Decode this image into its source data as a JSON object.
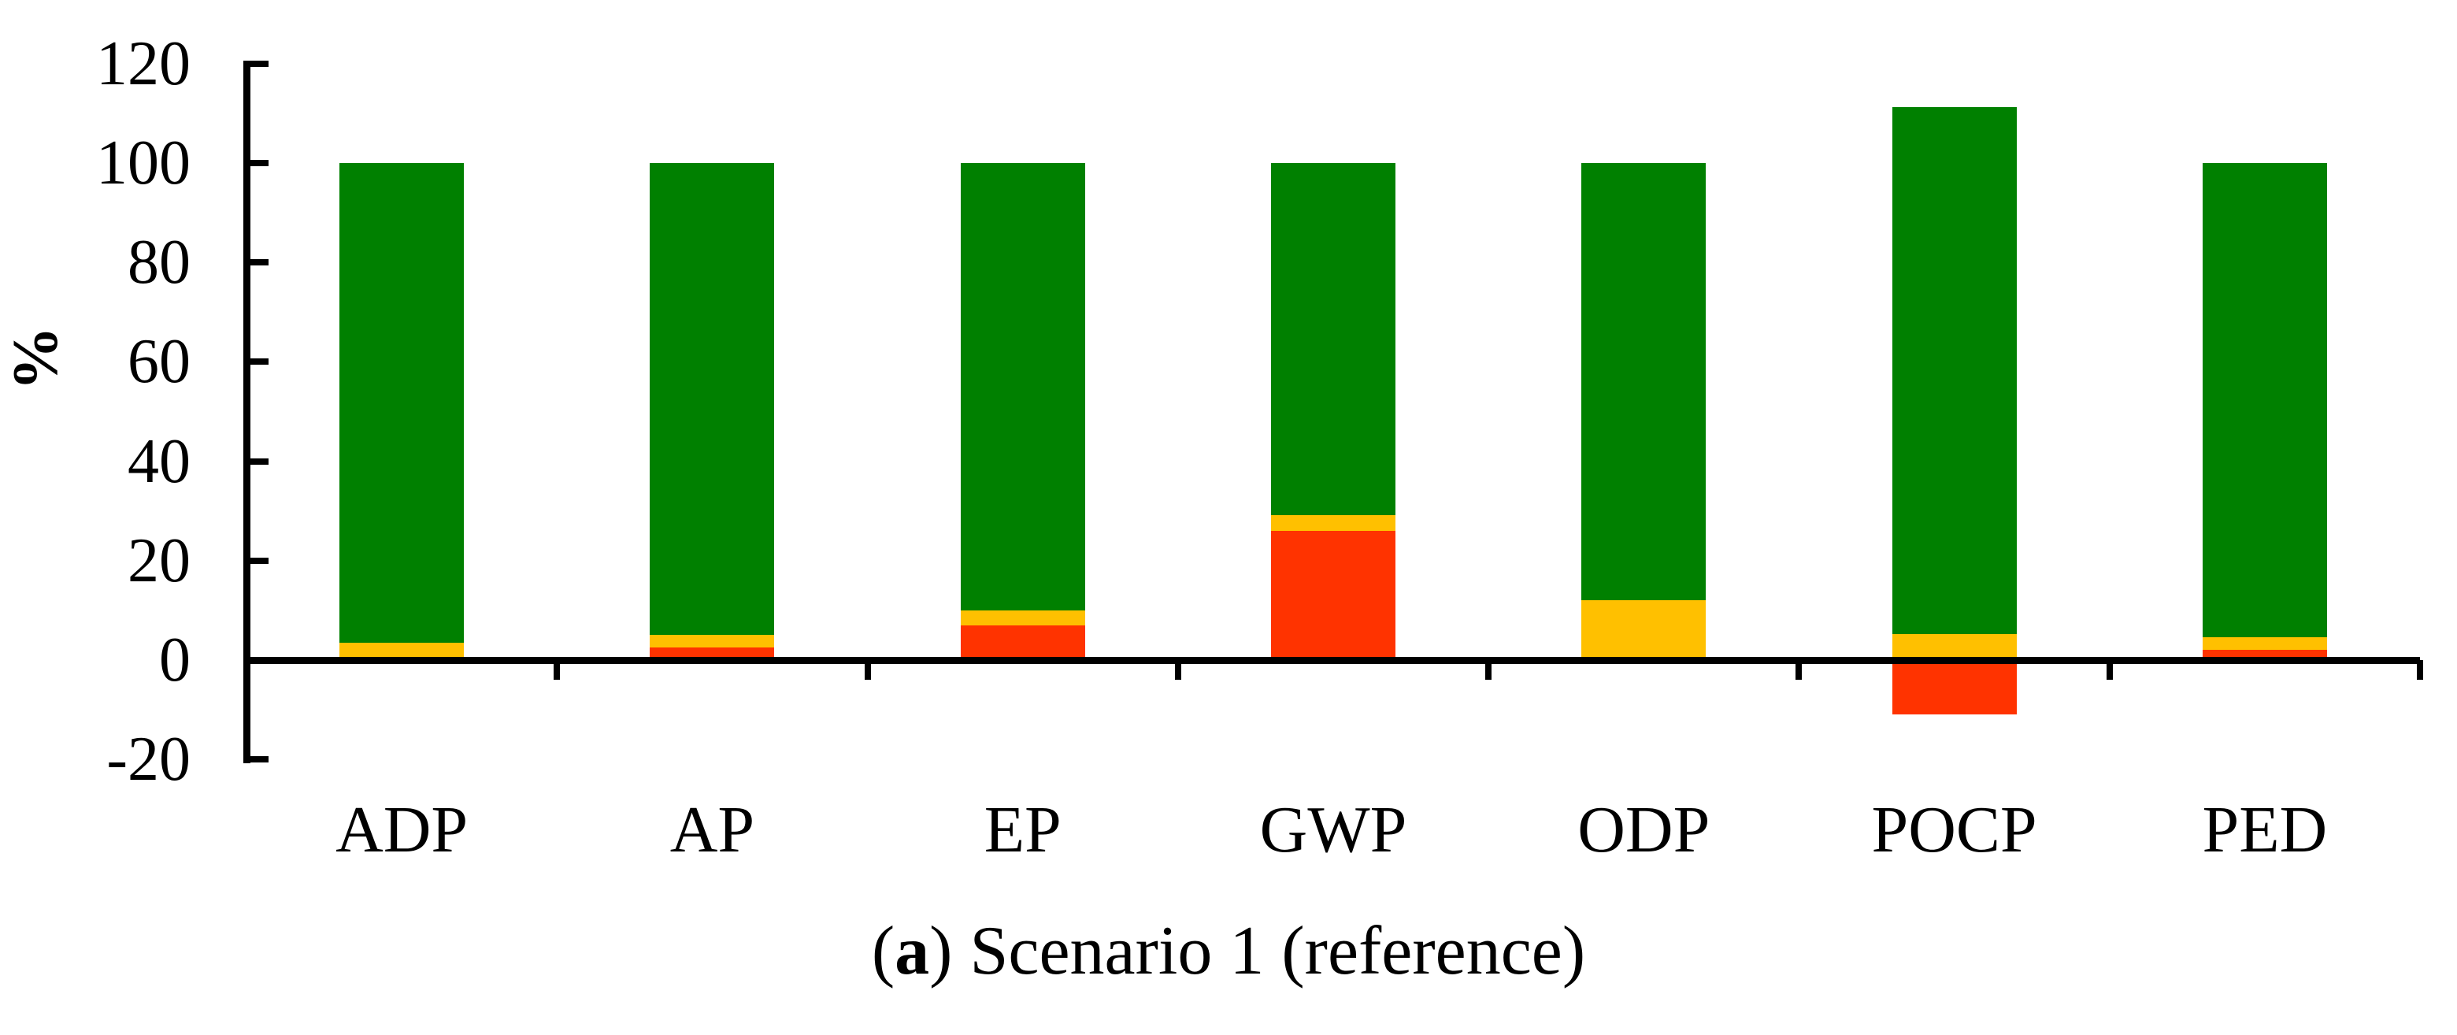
{
  "figure": {
    "caption": {
      "prefix": "(",
      "bold": "a",
      "rest": ") Scenario 1 (reference)"
    }
  },
  "chart_data": {
    "type": "bar",
    "stacked": true,
    "title": "",
    "caption": "(a) Scenario 1 (reference)",
    "categories": [
      "ADP",
      "AP",
      "EP",
      "GWP",
      "ODP",
      "POCP",
      "PED"
    ],
    "series": [
      {
        "name": "red",
        "color": "#FF3300",
        "values": [
          0,
          2.5,
          7,
          26,
          0,
          -11,
          2
        ]
      },
      {
        "name": "yellow",
        "color": "#FFC000",
        "values": [
          3.5,
          2.6,
          3,
          3.2,
          12,
          5.2,
          2.6
        ]
      },
      {
        "name": "green",
        "color": "#008000",
        "values": [
          96.5,
          94.9,
          90,
          70.8,
          88,
          106.1,
          95.4
        ]
      }
    ],
    "bar_totals_note": "all bars top out at 100 except POCP at 111; POCP red segment extends to -11",
    "xlabel": "",
    "ylabel": "%",
    "ylim": [
      -20,
      120
    ],
    "yticks": [
      120,
      100,
      80,
      60,
      40,
      20,
      0,
      -20
    ],
    "grid": false,
    "legend": false,
    "axis_color": "#000000"
  }
}
